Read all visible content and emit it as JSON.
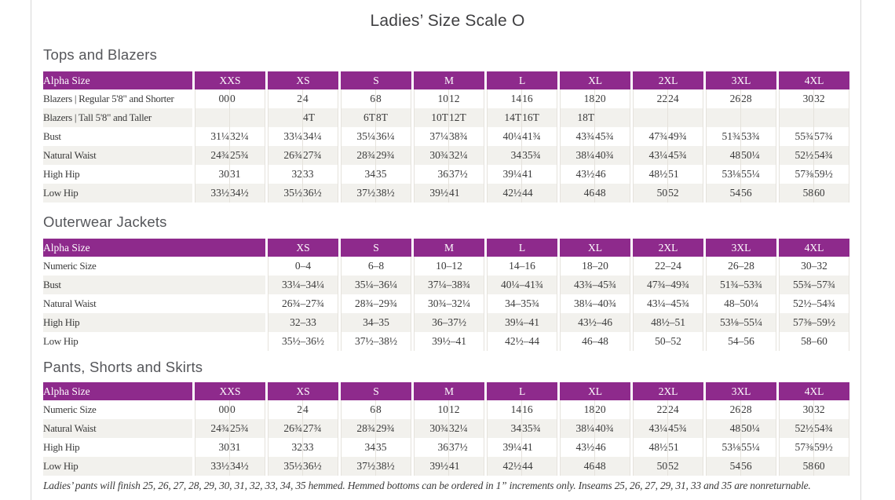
{
  "page": {
    "title": "Ladies’ Size Scale O",
    "footnote": "Ladies’ pants will finish 25, 26, 27, 28, 29, 30, 31, 32, 33, 34, 35 hemmed. Hemmed bottoms can be ordered in 1” increments only. Inseams 25, 26, 27, 29, 31, 33 and 35 are nonreturnable."
  },
  "colors": {
    "header_purple": "#8e2a8c",
    "row_stripe": "#f2f1ed",
    "cell_border": "#e5e2dc",
    "section_heading": "#55565a",
    "body_text": "#3a3a3a",
    "page_edge_line": "#d8d8d8"
  },
  "tables": {
    "tops": {
      "section_title": "Tops and Blazers",
      "header_label": "Alpha Size",
      "sizes": [
        "XXS",
        "XS",
        "S",
        "M",
        "L",
        "XL",
        "2XL",
        "3XL",
        "4XL"
      ],
      "rows": [
        {
          "label": "Blazers  |  Regular 5'8\" and Shorter",
          "values": [
            "00",
            "0",
            "2",
            "4",
            "6",
            "8",
            "10",
            "12",
            "14",
            "16",
            "18",
            "20",
            "22",
            "24",
            "26",
            "28",
            "30",
            "32"
          ]
        },
        {
          "label": "Blazers  |  Tall 5'8\" and Taller",
          "values": [
            "",
            "",
            "",
            "4T",
            "6T",
            "8T",
            "10T",
            "12T",
            "14T",
            "16T",
            "18T",
            "",
            "",
            "",
            "",
            "",
            "",
            ""
          ]
        },
        {
          "label": "Bust",
          "values": [
            "31¼",
            "32¼",
            "33¼",
            "34¼",
            "35¼",
            "36¼",
            "37¼",
            "38¾",
            "40¼",
            "41¾",
            "43¾",
            "45¾",
            "47¾",
            "49¾",
            "51¾",
            "53¾",
            "55¾",
            "57¾"
          ]
        },
        {
          "label": "Natural Waist",
          "values": [
            "24¾",
            "25¾",
            "26¾",
            "27¾",
            "28¾",
            "29¾",
            "30¾",
            "32¼",
            "34",
            "35¾",
            "38¼",
            "40¾",
            "43¼",
            "45¾",
            "48",
            "50¼",
            "52½",
            "54¾"
          ]
        },
        {
          "label": "High Hip",
          "values": [
            "30",
            "31",
            "32",
            "33",
            "34",
            "35",
            "36",
            "37½",
            "39¼",
            "41",
            "43½",
            "46",
            "48½",
            "51",
            "53⅛",
            "55¼",
            "57⅜",
            "59½"
          ]
        },
        {
          "label": "Low Hip",
          "values": [
            "33½",
            "34½",
            "35½",
            "36½",
            "37½",
            "38½",
            "39½",
            "41",
            "42½",
            "44",
            "46",
            "48",
            "50",
            "52",
            "54",
            "56",
            "58",
            "60"
          ]
        }
      ]
    },
    "outerwear": {
      "section_title": "Outerwear Jackets",
      "header_label": "Alpha Size",
      "sizes": [
        "XS",
        "S",
        "M",
        "L",
        "XL",
        "2XL",
        "3XL",
        "4XL"
      ],
      "rows": [
        {
          "label": "Numeric Size",
          "values": [
            "0–4",
            "6–8",
            "10–12",
            "14–16",
            "18–20",
            "22–24",
            "26–28",
            "30–32"
          ]
        },
        {
          "label": "Bust",
          "values": [
            "33¼–34¼",
            "35¼–36¼",
            "37¼–38¾",
            "40¼–41¾",
            "43¾–45¾",
            "47¾–49¾",
            "51¾–53¾",
            "55¾–57¾"
          ]
        },
        {
          "label": "Natural Waist",
          "values": [
            "26¾–27¾",
            "28¾–29¾",
            "30¾–32¼",
            "34–35¾",
            "38¼–40¾",
            "43¼–45¾",
            "48–50¼",
            "52½–54¾"
          ]
        },
        {
          "label": "High Hip",
          "values": [
            "32–33",
            "34–35",
            "36–37½",
            "39¼–41",
            "43½–46",
            "48½–51",
            "53⅛–55¼",
            "57⅜–59½"
          ]
        },
        {
          "label": "Low Hip",
          "values": [
            "35½–36½",
            "37½–38½",
            "39½–41",
            "42½–44",
            "46–48",
            "50–52",
            "54–56",
            "58–60"
          ]
        }
      ]
    },
    "pants": {
      "section_title": "Pants, Shorts and Skirts",
      "header_label": "Alpha Size",
      "sizes": [
        "XXS",
        "XS",
        "S",
        "M",
        "L",
        "XL",
        "2XL",
        "3XL",
        "4XL"
      ],
      "rows": [
        {
          "label": "Numeric Size",
          "values": [
            "00",
            "0",
            "2",
            "4",
            "6",
            "8",
            "10",
            "12",
            "14",
            "16",
            "18",
            "20",
            "22",
            "24",
            "26",
            "28",
            "30",
            "32"
          ]
        },
        {
          "label": "Natural Waist",
          "values": [
            "24¾",
            "25¾",
            "26¾",
            "27¾",
            "28¾",
            "29¾",
            "30¾",
            "32¼",
            "34",
            "35¾",
            "38¼",
            "40¾",
            "43¼",
            "45¾",
            "48",
            "50¼",
            "52½",
            "54¾"
          ]
        },
        {
          "label": "High Hip",
          "values": [
            "30",
            "31",
            "32",
            "33",
            "34",
            "35",
            "36",
            "37½",
            "39¼",
            "41",
            "43½",
            "46",
            "48½",
            "51",
            "53⅛",
            "55¼",
            "57⅜",
            "59½"
          ]
        },
        {
          "label": "Low Hip",
          "values": [
            "33½",
            "34½",
            "35½",
            "36½",
            "37½",
            "38½",
            "39½",
            "41",
            "42½",
            "44",
            "46",
            "48",
            "50",
            "52",
            "54",
            "56",
            "58",
            "60"
          ]
        }
      ]
    }
  }
}
